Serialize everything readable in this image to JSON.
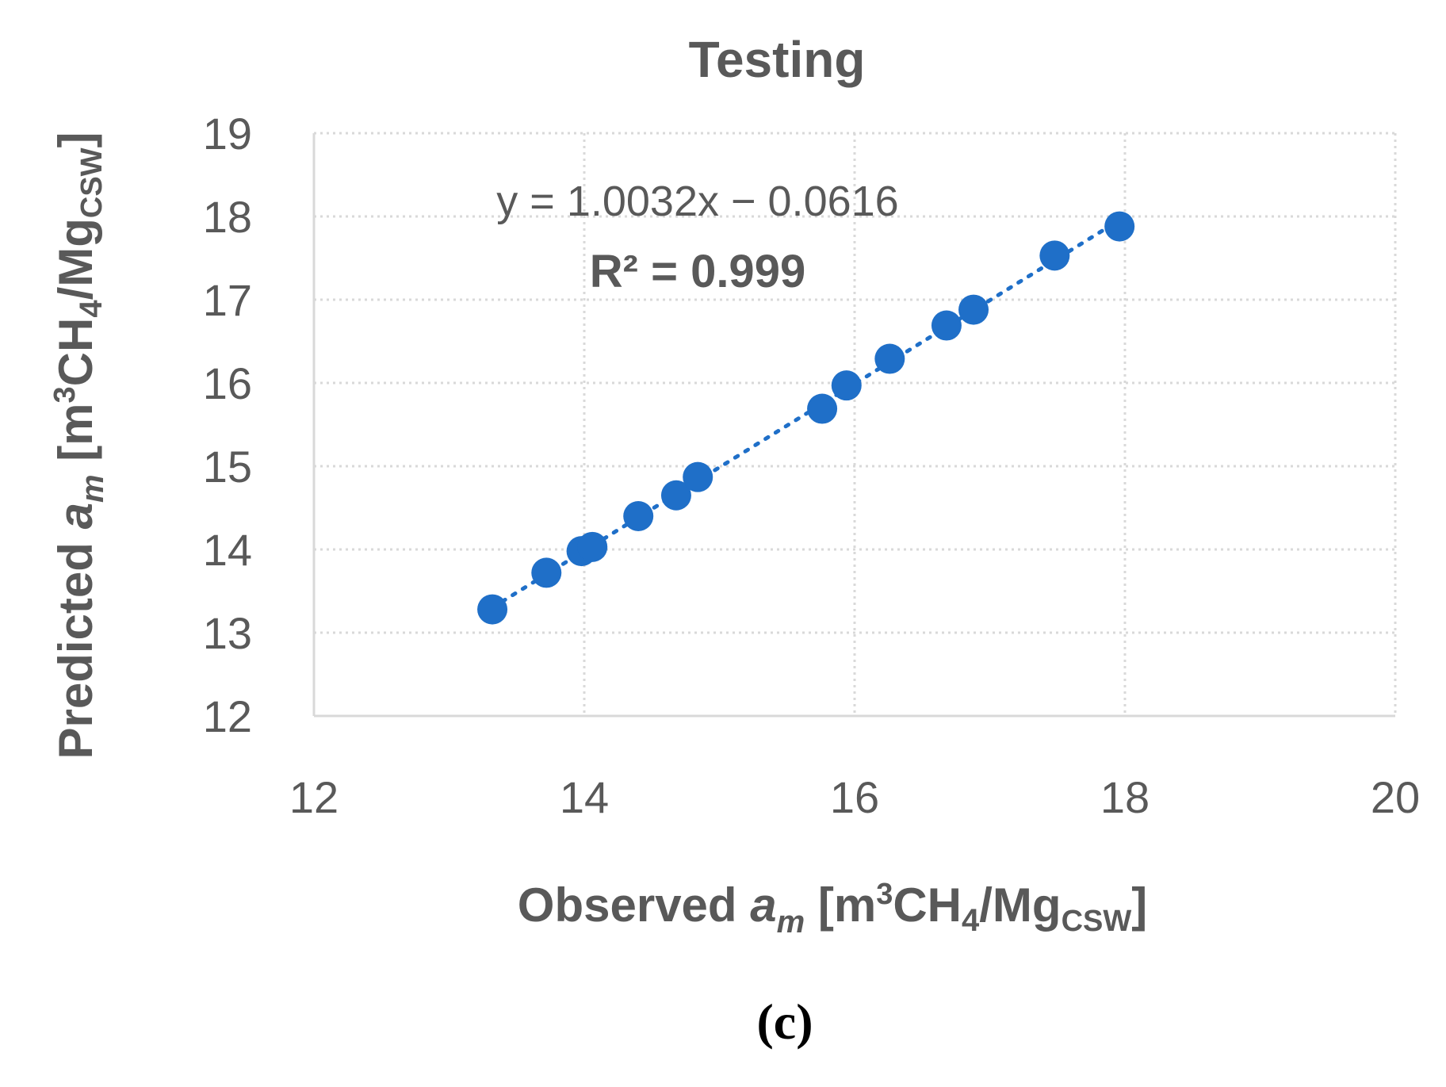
{
  "chart_data": {
    "type": "scatter",
    "title": "Testing",
    "xlabel": {
      "prefix": "Observed ",
      "var": "a",
      "var_sub": "m",
      "unit_open": " [m",
      "unit_sup": "3",
      "unit_mid": "CH",
      "unit_sub1": "4",
      "unit_mid2": "/Mg",
      "unit_sub2": "CSW",
      "unit_close": "]"
    },
    "ylabel": {
      "prefix": "Predicted ",
      "var": "a",
      "var_sub": "m",
      "unit_open": " [m",
      "unit_sup": "3",
      "unit_mid": "CH",
      "unit_sub1": "4",
      "unit_mid2": "/Mg",
      "unit_sub2": "CSW",
      "unit_close": "]"
    },
    "xlim": [
      12,
      20
    ],
    "ylim": [
      12,
      19
    ],
    "xticks": [
      "12",
      "14",
      "16",
      "18",
      "20"
    ],
    "yticks": [
      "12",
      "13",
      "14",
      "15",
      "16",
      "17",
      "18",
      "19"
    ],
    "grid": true,
    "series": [
      {
        "name": "Testing",
        "color": "#1f6fc8",
        "x": [
          13.32,
          13.72,
          13.98,
          14.06,
          14.4,
          14.68,
          14.84,
          15.76,
          15.94,
          16.26,
          16.68,
          16.88,
          17.48,
          17.96
        ],
        "y": [
          13.28,
          13.72,
          13.98,
          14.03,
          14.4,
          14.65,
          14.87,
          15.69,
          15.97,
          16.29,
          16.69,
          16.88,
          17.53,
          17.88
        ]
      }
    ],
    "trendline": {
      "type": "linear",
      "style": "dotted",
      "color": "#1f6fc8",
      "slope": 1.0032,
      "intercept": -0.0616,
      "x_range": [
        13.32,
        17.96
      ],
      "equation": "y = 1.0032x − 0.0616",
      "r2_label": "R² = 0.999"
    }
  },
  "caption": "(c)"
}
